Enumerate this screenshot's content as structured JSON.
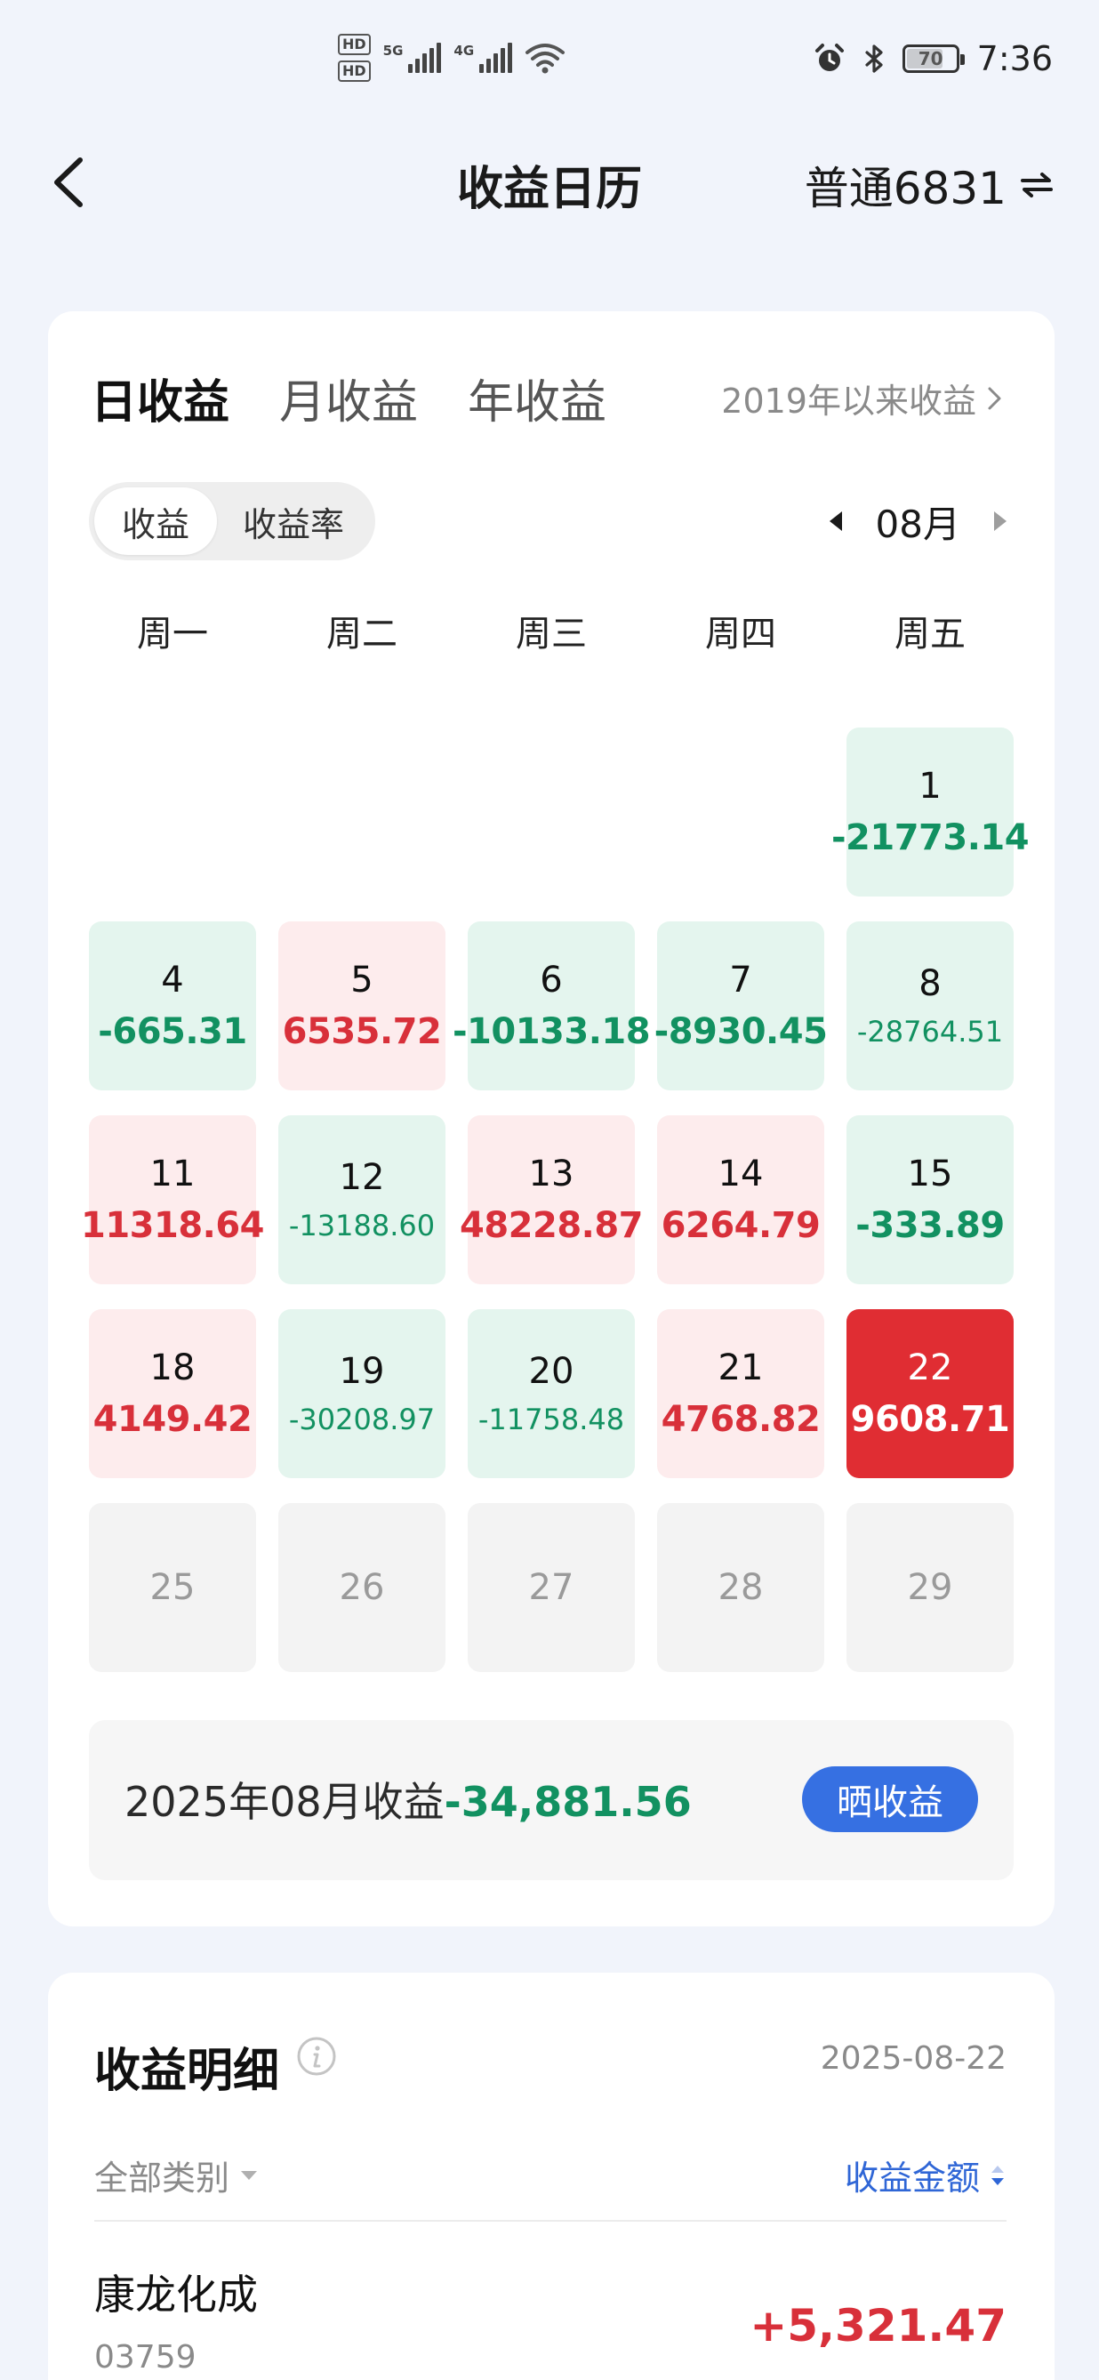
{
  "status_bar": {
    "hd1": "HD",
    "hd2": "HD",
    "net1": "5G",
    "net2": "4G",
    "battery": "70",
    "time": "7:36"
  },
  "header": {
    "title": "收益日历",
    "account": "普通6831"
  },
  "calendar": {
    "tabs": [
      "日收益",
      "月收益",
      "年收益"
    ],
    "active_tab": "日收益",
    "since_link": "2019年以来收益",
    "toggle": [
      "收益",
      "收益率"
    ],
    "toggle_selected": "收益",
    "month": "08月",
    "weekdays": [
      "周一",
      "周二",
      "周三",
      "周四",
      "周五"
    ],
    "days": [
      {
        "num": "",
        "value": "",
        "state": "empty"
      },
      {
        "num": "",
        "value": "",
        "state": "empty"
      },
      {
        "num": "",
        "value": "",
        "state": "empty"
      },
      {
        "num": "",
        "value": "",
        "state": "empty"
      },
      {
        "num": "1",
        "value": "-21773.14",
        "state": "loss"
      },
      {
        "num": "4",
        "value": "-665.31",
        "state": "loss"
      },
      {
        "num": "5",
        "value": "6535.72",
        "state": "gain"
      },
      {
        "num": "6",
        "value": "-10133.18",
        "state": "loss"
      },
      {
        "num": "7",
        "value": "-8930.45",
        "state": "loss"
      },
      {
        "num": "8",
        "value": "-28764.51",
        "state": "loss"
      },
      {
        "num": "11",
        "value": "11318.64",
        "state": "gain"
      },
      {
        "num": "12",
        "value": "-13188.60",
        "state": "loss"
      },
      {
        "num": "13",
        "value": "48228.87",
        "state": "gain"
      },
      {
        "num": "14",
        "value": "6264.79",
        "state": "gain"
      },
      {
        "num": "15",
        "value": "-333.89",
        "state": "loss"
      },
      {
        "num": "18",
        "value": "4149.42",
        "state": "gain"
      },
      {
        "num": "19",
        "value": "-30208.97",
        "state": "loss"
      },
      {
        "num": "20",
        "value": "-11758.48",
        "state": "loss"
      },
      {
        "num": "21",
        "value": "4768.82",
        "state": "gain"
      },
      {
        "num": "22",
        "value": "9608.71",
        "state": "today"
      },
      {
        "num": "25",
        "value": "",
        "state": "future"
      },
      {
        "num": "26",
        "value": "",
        "state": "future"
      },
      {
        "num": "27",
        "value": "",
        "state": "future"
      },
      {
        "num": "28",
        "value": "",
        "state": "future"
      },
      {
        "num": "29",
        "value": "",
        "state": "future"
      }
    ],
    "summary_label": "2025年08月收益",
    "summary_value": "-34,881.56",
    "share_button": "晒收益"
  },
  "detail": {
    "title": "收益明细",
    "date": "2025-08-22",
    "filter_label": "全部类别",
    "sort_label": "收益金额",
    "rows": [
      {
        "name": "康龙化成",
        "code": "03759",
        "value": "+5,321.47"
      }
    ]
  },
  "colors": {
    "gain": "#d8303a",
    "loss": "#129161",
    "accent": "#3670e2",
    "gain_bg": "#fdeced",
    "loss_bg": "#e4f5ee"
  }
}
